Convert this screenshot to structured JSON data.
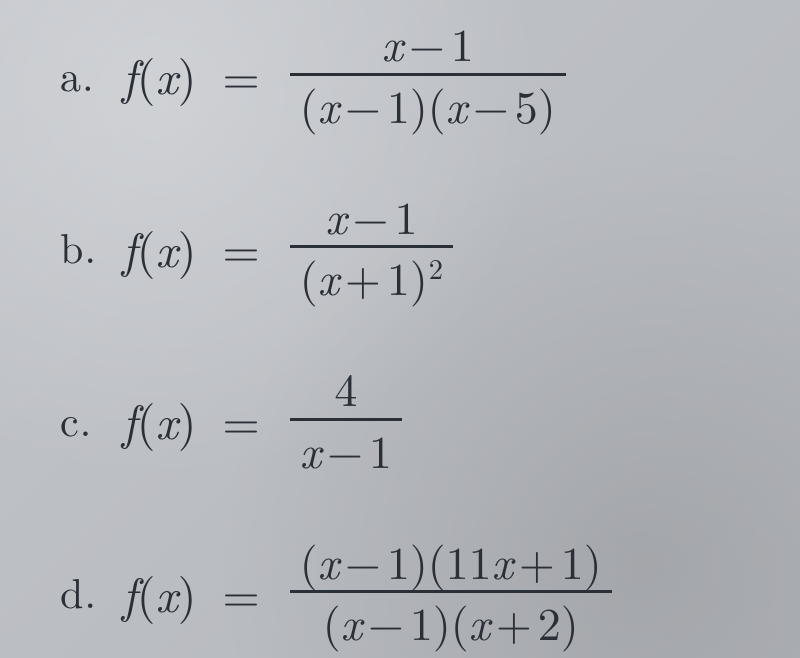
{
  "text_color": "#2b3038",
  "background_color": "#b9bcc1",
  "font_family": "serif",
  "problems": {
    "a": {
      "label": "a.",
      "lhs_func": "f",
      "lhs_arg": "x",
      "numerator_html": "<span>x</span><span class=\"op\">−</span><span class=\"up\">1</span>",
      "denominator_html": "<span class=\"up\">(</span><span>x</span><span class=\"op\">−</span><span class=\"up\">1)(</span><span>x</span><span class=\"op\">−</span><span class=\"up\">5)</span>"
    },
    "b": {
      "label": "b.",
      "lhs_func": "f",
      "lhs_arg": "x",
      "numerator_html": "<span>x</span><span class=\"op\">−</span><span class=\"up\">1</span>",
      "denominator_html": "<span class=\"up\">(</span><span>x</span><span class=\"op\">+</span><span class=\"up\">1)</span><span class=\"sup\">2</span>"
    },
    "c": {
      "label": "c.",
      "lhs_func": "f",
      "lhs_arg": "x",
      "numerator_html": "<span class=\"up\">4</span>",
      "denominator_html": "<span>x</span><span class=\"op\">−</span><span class=\"up\">1</span>"
    },
    "d": {
      "label": "d.",
      "lhs_func": "f",
      "lhs_arg": "x",
      "numerator_html": "<span class=\"up\">(</span><span>x</span><span class=\"op\">−</span><span class=\"up\">1)(11</span><span>x</span><span class=\"op\">+</span><span class=\"up\">1)</span>",
      "denominator_html": "<span class=\"up\">(</span><span>x</span><span class=\"op\">−</span><span class=\"up\">1)(</span><span>x</span><span class=\"op\">+</span><span class=\"up\">2)</span>"
    }
  }
}
